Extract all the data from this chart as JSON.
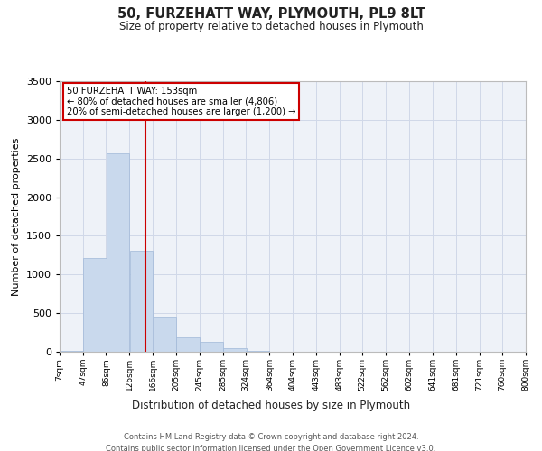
{
  "title": "50, FURZEHATT WAY, PLYMOUTH, PL9 8LT",
  "subtitle": "Size of property relative to detached houses in Plymouth",
  "xlabel": "Distribution of detached houses by size in Plymouth",
  "ylabel": "Number of detached properties",
  "bar_color": "#c9d9ed",
  "bar_edgecolor": "#a0b8d8",
  "grid_color": "#d0d8e8",
  "background_color": "#eef2f8",
  "property_line_x": 153,
  "property_label": "50 FURZEHATT WAY: 153sqm",
  "annotation_line1": "← 80% of detached houses are smaller (4,806)",
  "annotation_line2": "20% of semi-detached houses are larger (1,200) →",
  "annotation_box_color": "#cc0000",
  "annotation_text_color": "#000000",
  "footer_line1": "Contains HM Land Registry data © Crown copyright and database right 2024.",
  "footer_line2": "Contains public sector information licensed under the Open Government Licence v3.0.",
  "bins": [
    7,
    47,
    86,
    126,
    166,
    205,
    245,
    285,
    324,
    364,
    404,
    443,
    483,
    522,
    562,
    602,
    641,
    681,
    721,
    760,
    800
  ],
  "bin_labels": [
    "7sqm",
    "47sqm",
    "86sqm",
    "126sqm",
    "166sqm",
    "205sqm",
    "245sqm",
    "285sqm",
    "324sqm",
    "364sqm",
    "404sqm",
    "443sqm",
    "483sqm",
    "522sqm",
    "562sqm",
    "602sqm",
    "641sqm",
    "681sqm",
    "721sqm",
    "760sqm",
    "800sqm"
  ],
  "values": [
    10,
    1210,
    2570,
    1310,
    450,
    190,
    130,
    45,
    10,
    2,
    0,
    0,
    0,
    0,
    0,
    0,
    0,
    0,
    0,
    0
  ],
  "ylim": [
    0,
    3500
  ],
  "yticks": [
    0,
    500,
    1000,
    1500,
    2000,
    2500,
    3000,
    3500
  ]
}
